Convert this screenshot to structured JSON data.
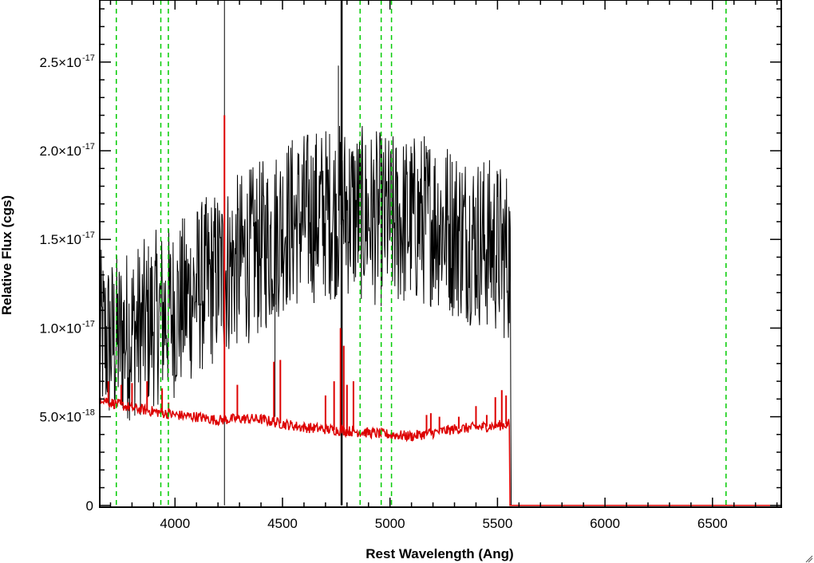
{
  "chart_data": {
    "type": "line",
    "title": "",
    "xlabel": "Rest Wavelength (Ang)",
    "ylabel": "Relative Flux (cgs)",
    "xlim": [
      3650,
      6820
    ],
    "ylim": [
      -1e-19,
      2.85e-17
    ],
    "x_ticks": [
      {
        "value": 4000,
        "label": "4000"
      },
      {
        "value": 4500,
        "label": "4500"
      },
      {
        "value": 5000,
        "label": "5000"
      },
      {
        "value": 5500,
        "label": "5500"
      },
      {
        "value": 6000,
        "label": "6000"
      },
      {
        "value": 6500,
        "label": "6500"
      }
    ],
    "y_ticks": [
      {
        "value": 0,
        "mantissa": "0",
        "exponent": ""
      },
      {
        "value": 5e-18,
        "mantissa": "5.0×10",
        "exponent": "-18"
      },
      {
        "value": 1e-17,
        "mantissa": "1.0×10",
        "exponent": "-17"
      },
      {
        "value": 1.5e-17,
        "mantissa": "1.5×10",
        "exponent": "-17"
      },
      {
        "value": 2e-17,
        "mantissa": "2.0×10",
        "exponent": "-17"
      },
      {
        "value": 2.5e-17,
        "mantissa": "2.5×10",
        "exponent": "-17"
      }
    ],
    "x_minor_step": 100,
    "y_minor_step": 1e-18,
    "grid": false,
    "series": [
      {
        "color": "#000000",
        "noisy": true,
        "x": [
          3650,
          3700,
          3750,
          3800,
          3850,
          3900,
          3950,
          4000,
          4050,
          4100,
          4150,
          4200,
          4300,
          4400,
          4450,
          4500,
          4600,
          4700,
          4800,
          4900,
          5000,
          5100,
          5200,
          5300,
          5400,
          5500,
          5560,
          5562,
          6820
        ],
        "y": [
          9.5e-18,
          9.2e-18,
          9.5e-18,
          9.8e-18,
          1e-17,
          1.05e-17,
          1.08e-17,
          1.1e-17,
          1.15e-17,
          1.22e-17,
          1.25e-17,
          1.3e-17,
          1.38e-17,
          1.45e-17,
          1.5e-17,
          1.58e-17,
          1.62e-17,
          1.65e-17,
          1.67e-17,
          1.63e-17,
          1.6e-17,
          1.6e-17,
          1.62e-17,
          1.55e-17,
          1.5e-17,
          1.45e-17,
          1.4e-17,
          0,
          0
        ],
        "noise_amplitude": 5e-18,
        "spikes": [
          {
            "x": 4230,
            "y": 2.85e-17,
            "low": 0
          },
          {
            "x": 4775,
            "y": 2.85e-17,
            "low": 0
          },
          {
            "x": 4760,
            "y": 2.48e-17
          },
          {
            "x": 4465,
            "y": 5e-18
          }
        ]
      },
      {
        "color": "#dd0000",
        "noisy": false,
        "x": [
          3650,
          3700,
          3800,
          3900,
          4000,
          4100,
          4200,
          4300,
          4400,
          4500,
          4600,
          4700,
          4800,
          4900,
          5000,
          5100,
          5200,
          5300,
          5400,
          5500,
          5555,
          5558,
          6820
        ],
        "y": [
          6.1e-18,
          5.8e-18,
          5.5e-18,
          5.3e-18,
          5.1e-18,
          5e-18,
          4.8e-18,
          4.9e-18,
          4.85e-18,
          4.6e-18,
          4.4e-18,
          4.3e-18,
          4.2e-18,
          4.1e-18,
          4e-18,
          3.9e-18,
          4.1e-18,
          4.3e-18,
          4.4e-18,
          4.5e-18,
          4.6e-18,
          0,
          0
        ],
        "emission_lines": [
          {
            "x": 3690,
            "y": 7e-18
          },
          {
            "x": 3750,
            "y": 6.8e-18
          },
          {
            "x": 3800,
            "y": 6.9e-18
          },
          {
            "x": 3870,
            "y": 7e-18
          },
          {
            "x": 3940,
            "y": 6.6e-18
          },
          {
            "x": 3970,
            "y": 5.8e-18
          },
          {
            "x": 4230,
            "y": 2.2e-17
          },
          {
            "x": 4290,
            "y": 6.8e-18
          },
          {
            "x": 4460,
            "y": 8.1e-18
          },
          {
            "x": 4490,
            "y": 8.2e-18
          },
          {
            "x": 4700,
            "y": 6.2e-18
          },
          {
            "x": 4740,
            "y": 7e-18
          },
          {
            "x": 4770,
            "y": 1e-17
          },
          {
            "x": 4785,
            "y": 9e-18
          },
          {
            "x": 4800,
            "y": 6.8e-18
          },
          {
            "x": 4830,
            "y": 7e-18
          },
          {
            "x": 5170,
            "y": 5.1e-18
          },
          {
            "x": 5190,
            "y": 5.2e-18
          },
          {
            "x": 5230,
            "y": 5e-18
          },
          {
            "x": 5320,
            "y": 5e-18
          },
          {
            "x": 5400,
            "y": 5.6e-18
          },
          {
            "x": 5450,
            "y": 5.1e-18
          },
          {
            "x": 5490,
            "y": 6.1e-18
          },
          {
            "x": 5520,
            "y": 6.5e-18
          },
          {
            "x": 5540,
            "y": 6.2e-18
          }
        ],
        "small_noise": 3e-19
      }
    ],
    "reference_lines": {
      "color": "#00cc00",
      "style": "dashed",
      "x": [
        3727,
        3934,
        3969,
        4861,
        4959,
        5007,
        6563
      ]
    }
  }
}
